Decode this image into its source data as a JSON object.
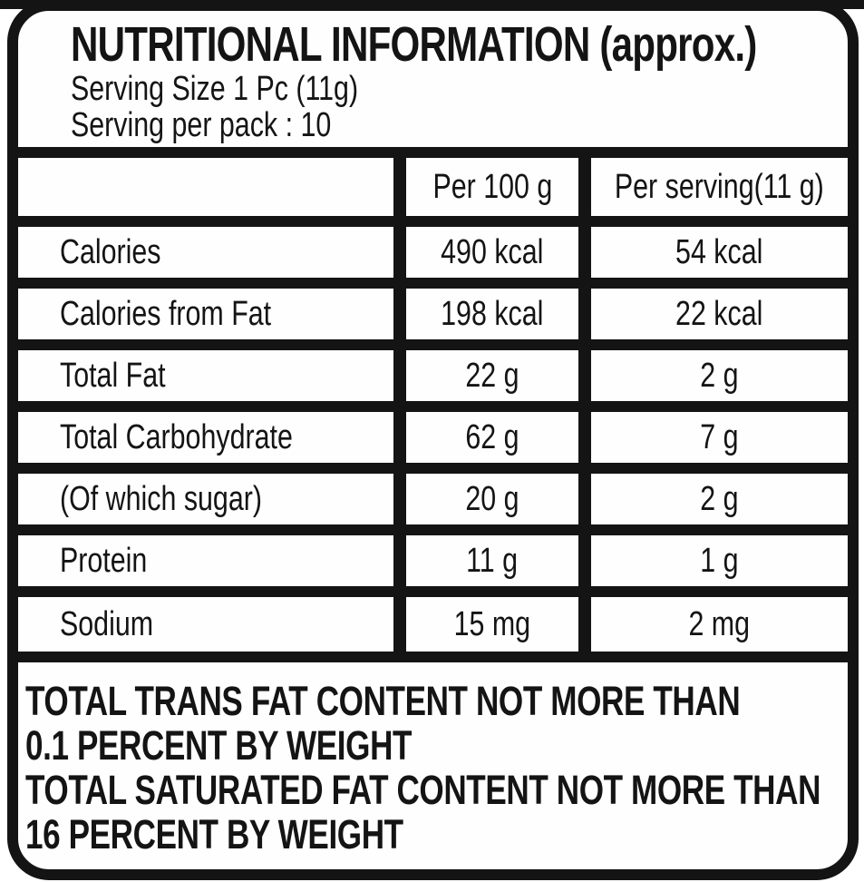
{
  "colors": {
    "ink": "#141414",
    "paper": "#fefefe"
  },
  "header": {
    "title": "NUTRITIONAL INFORMATION (approx.)",
    "serving_size": "Serving Size 1 Pc (11g)",
    "serving_per_pack": "Serving per pack : 10"
  },
  "table": {
    "columns": [
      "",
      "Per 100 g",
      "Per serving(11 g)"
    ],
    "rows": [
      {
        "label": "Calories",
        "per_100g": "490 kcal",
        "per_serving": "54 kcal"
      },
      {
        "label": "Calories from Fat",
        "per_100g": "198 kcal",
        "per_serving": "22 kcal"
      },
      {
        "label": "Total Fat",
        "per_100g": "22 g",
        "per_serving": "2 g"
      },
      {
        "label": "Total Carbohydrate",
        "per_100g": "62 g",
        "per_serving": "7 g"
      },
      {
        "label": "(Of which sugar)",
        "per_100g": "20 g",
        "per_serving": "2 g"
      },
      {
        "label": "Protein",
        "per_100g": "11 g",
        "per_serving": "1 g"
      },
      {
        "label": "Sodium",
        "per_100g": "15 mg",
        "per_serving": "2 mg"
      }
    ]
  },
  "footnote": {
    "lines": [
      "TOTAL TRANS FAT CONTENT NOT MORE THAN",
      "0.1 PERCENT BY WEIGHT",
      "TOTAL SATURATED FAT CONTENT NOT MORE THAN",
      "16 PERCENT BY WEIGHT"
    ]
  }
}
